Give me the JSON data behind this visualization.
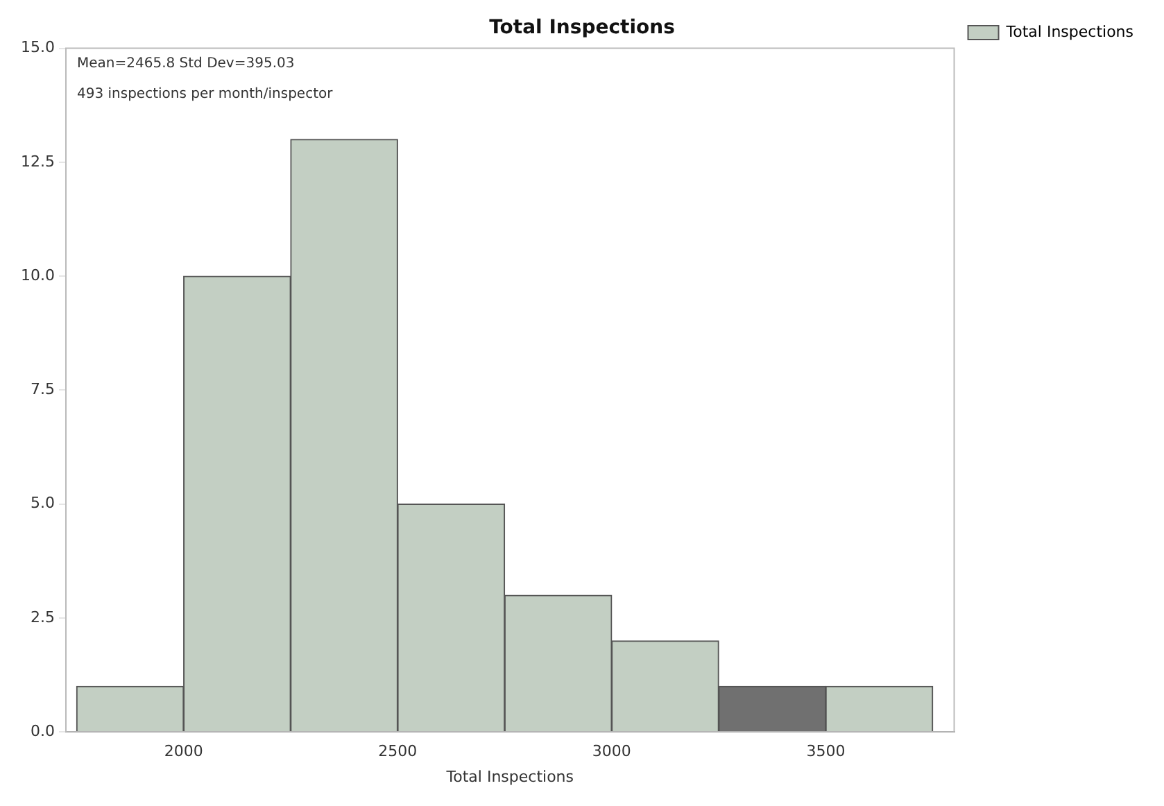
{
  "chart_data": {
    "type": "histogram",
    "title": "Total Inspections",
    "xlabel": "Total Inspections",
    "annotations": [
      "Mean=2465.8 Std Dev=395.03",
      "493 inspections per month/inspector"
    ],
    "bins": [
      1750,
      2000,
      2250,
      2500,
      2750,
      3000,
      3250,
      3500,
      3750
    ],
    "series": [
      {
        "name": "Total Inspections",
        "color": "#c3cfc3",
        "colors": [
          "#c3cfc3",
          "#c3cfc3",
          "#c3cfc3",
          "#c3cfc3",
          "#c3cfc3",
          "#c3cfc3",
          "#707070",
          "#c3cfc3"
        ],
        "values": [
          1,
          10,
          13,
          5,
          3,
          2,
          1,
          1
        ]
      }
    ],
    "xlim": [
      1725,
      3800
    ],
    "xticks": [
      2000,
      2500,
      3000,
      3500
    ],
    "ylim": [
      0,
      15
    ],
    "yticks": [
      {
        "value": 0,
        "label": "0.0"
      },
      {
        "value": 2.5,
        "label": "2.5"
      },
      {
        "value": 5,
        "label": "5.0"
      },
      {
        "value": 7.5,
        "label": "7.5"
      },
      {
        "value": 10,
        "label": "10.0"
      },
      {
        "value": 12.5,
        "label": "12.5"
      },
      {
        "value": 15,
        "label": "15.0"
      }
    ],
    "grid": false,
    "legend": "top right"
  }
}
